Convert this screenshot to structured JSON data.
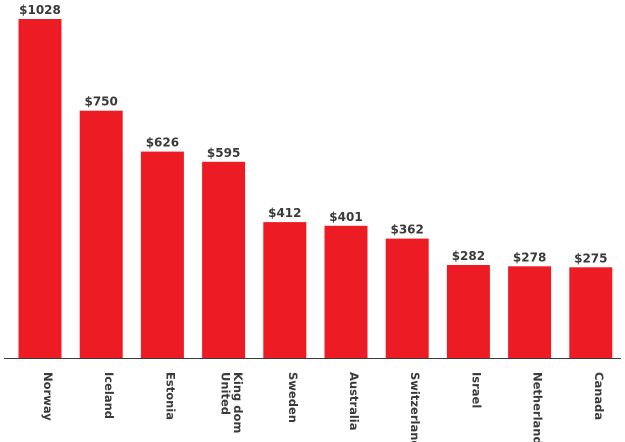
{
  "chart_data": {
    "type": "bar",
    "title": "",
    "xlabel": "",
    "ylabel": "",
    "grid": false,
    "colors": {
      "bar": "#ED1C24",
      "text": "#3a3a3a",
      "axis": "#3a3a3a"
    },
    "categories": [
      "Norway",
      "Iceland",
      "Estonia",
      "United Kingdom",
      "Sweden",
      "Australia",
      "Switzerland",
      "Israel",
      "Netherlands",
      "Canada"
    ],
    "category_lines": [
      [
        "Norway"
      ],
      [
        "Iceland"
      ],
      [
        "Estonia"
      ],
      [
        "United",
        "King dom"
      ],
      [
        "Sweden"
      ],
      [
        "Australia"
      ],
      [
        "Switzerland"
      ],
      [
        "Israel"
      ],
      [
        "Netherlands"
      ],
      [
        "Canada"
      ]
    ],
    "values": [
      1028,
      750,
      626,
      595,
      412,
      401,
      362,
      282,
      278,
      275
    ],
    "value_labels": [
      "$1028",
      "$750",
      "$626",
      "$595",
      "$412",
      "$401",
      "$362",
      "$282",
      "$278",
      "$275"
    ],
    "ylim": [
      0,
      1028
    ]
  }
}
